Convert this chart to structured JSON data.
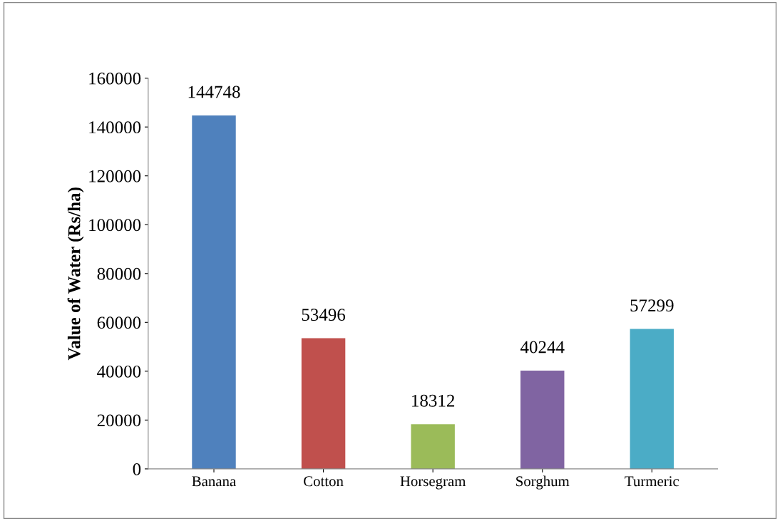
{
  "chart_data": {
    "type": "bar",
    "ylabel": "Value of Water (Rs/ha)",
    "categories": [
      "Banana",
      "Cotton",
      "Horsegram",
      "Sorghum",
      "Turmeric"
    ],
    "values": [
      144748,
      53496,
      18312,
      40244,
      57299
    ],
    "colors": [
      "#4f81bd",
      "#c0504d",
      "#9bbb59",
      "#8064a2",
      "#4bacc6"
    ],
    "ylim": [
      0,
      160000
    ],
    "yticks": [
      0,
      20000,
      40000,
      60000,
      80000,
      100000,
      120000,
      140000,
      160000
    ],
    "data_labels": true,
    "grid": false,
    "legend": false
  }
}
